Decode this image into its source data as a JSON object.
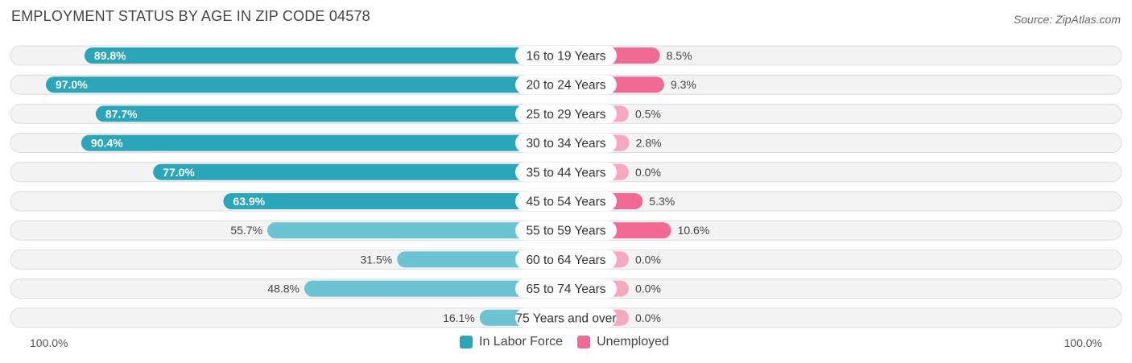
{
  "title": "EMPLOYMENT STATUS BY AGE IN ZIP CODE 04578",
  "source": "Source: ZipAtlas.com",
  "axis": {
    "left_label": "100.0%",
    "right_label": "100.0%"
  },
  "legend": [
    {
      "label": "In Labor Force",
      "color": "#2ba5b8"
    },
    {
      "label": "Unemployed",
      "color": "#f06a95"
    }
  ],
  "chart_data": {
    "type": "bar",
    "orientation": "diverging-horizontal",
    "categories": [
      "16 to 19 Years",
      "20 to 24 Years",
      "25 to 29 Years",
      "30 to 34 Years",
      "35 to 44 Years",
      "45 to 54 Years",
      "55 to 59 Years",
      "60 to 64 Years",
      "65 to 74 Years",
      "75 Years and over"
    ],
    "series": [
      {
        "name": "In Labor Force",
        "values": [
          89.8,
          97.0,
          87.7,
          90.4,
          77.0,
          63.9,
          55.7,
          31.5,
          48.8,
          16.1
        ],
        "labels": [
          "89.8%",
          "97.0%",
          "87.7%",
          "90.4%",
          "77.0%",
          "63.9%",
          "55.7%",
          "31.5%",
          "48.8%",
          "16.1%"
        ]
      },
      {
        "name": "Unemployed",
        "values": [
          8.5,
          9.3,
          0.5,
          2.8,
          0.0,
          5.3,
          10.6,
          0.0,
          0.0,
          0.0
        ],
        "labels": [
          "8.5%",
          "9.3%",
          "0.5%",
          "2.8%",
          "0.0%",
          "5.3%",
          "10.6%",
          "0.0%",
          "0.0%",
          "0.0%"
        ]
      }
    ],
    "xlim_left": [
      0,
      100
    ],
    "xlim_right": [
      0,
      100
    ]
  }
}
